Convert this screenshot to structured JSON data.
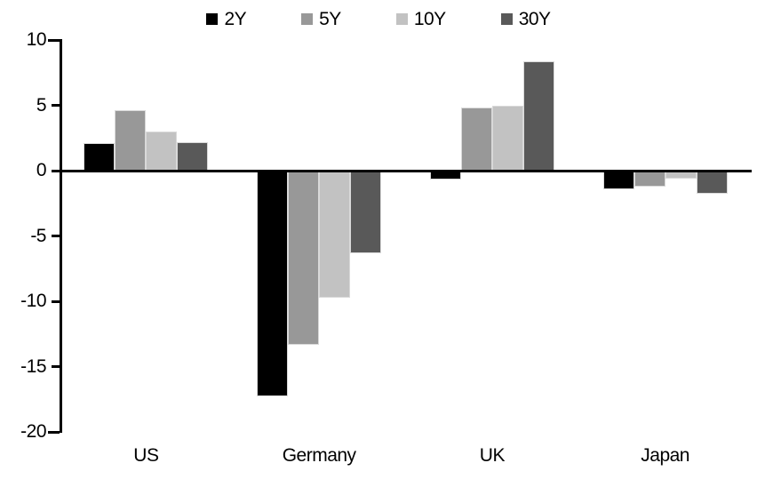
{
  "chart_data": {
    "type": "bar",
    "title": "",
    "categories": [
      "US",
      "Germany",
      "UK",
      "Japan"
    ],
    "series": [
      {
        "name": "2Y",
        "color": "#000000",
        "values": [
          2.1,
          -17.3,
          -0.7,
          -1.4
        ]
      },
      {
        "name": "5Y",
        "color": "#989898",
        "values": [
          4.6,
          -13.3,
          4.8,
          -1.2
        ]
      },
      {
        "name": "10Y",
        "color": "#c2c2c2",
        "values": [
          3.0,
          -9.7,
          5.0,
          -0.6
        ]
      },
      {
        "name": "30Y",
        "color": "#595959",
        "values": [
          2.2,
          -6.3,
          8.4,
          -1.8
        ]
      }
    ],
    "ylim": [
      -20,
      10
    ],
    "yticks": [
      10,
      5,
      0,
      -5,
      -10,
      -15,
      -20
    ],
    "legend_position": "top-center",
    "grid": false,
    "axis_color": "#000000",
    "background_color": "#ffffff"
  }
}
